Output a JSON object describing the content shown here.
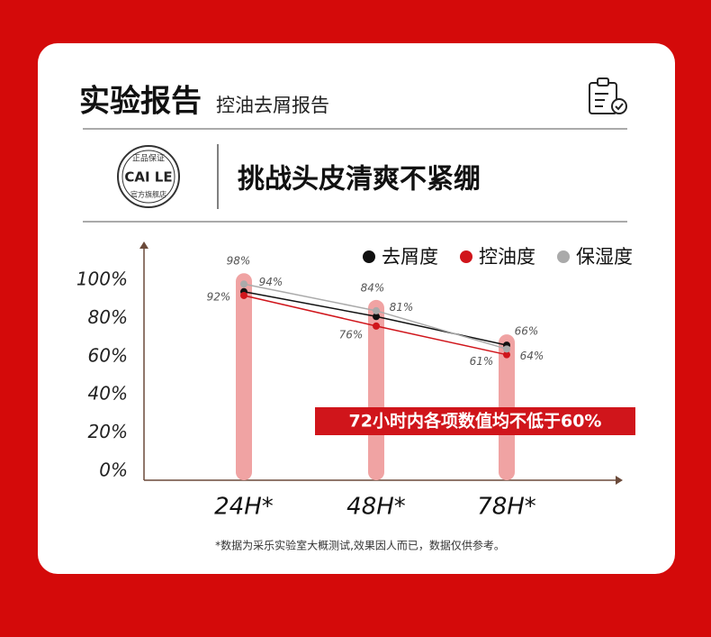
{
  "header": {
    "title": "实验报告",
    "subtitle": "控油去屑报告"
  },
  "badge": {
    "top": "正品保证",
    "brand": "CAI LE",
    "bottom": "官方旗舰店"
  },
  "headline": "挑战头皮清爽不紧绷",
  "chart_data": {
    "type": "line",
    "categories": [
      "24H*",
      "48H*",
      "78H*"
    ],
    "series": [
      {
        "name": "去屑度",
        "color": "#111111",
        "values": [
          94,
          81,
          66
        ],
        "value_labels": [
          "94%",
          "81%",
          "66%"
        ]
      },
      {
        "name": "控油度",
        "color": "#d0151b",
        "values": [
          92,
          76,
          61
        ],
        "value_labels": [
          "92%",
          "76%",
          "61%"
        ]
      },
      {
        "name": "保湿度",
        "color": "#aaaaaa",
        "values": [
          98,
          84,
          64
        ],
        "value_labels": [
          "98%",
          "84%",
          "64%"
        ]
      }
    ],
    "ylim": [
      0,
      120
    ],
    "yticks": [
      {
        "value": 0,
        "label": "0%"
      },
      {
        "value": 20,
        "label": "20%"
      },
      {
        "value": 40,
        "label": "40%"
      },
      {
        "value": 60,
        "label": "60%"
      },
      {
        "value": 80,
        "label": "80%"
      },
      {
        "value": 100,
        "label": "100%"
      }
    ],
    "annotation": "72小时内各项数值均不低于60%"
  },
  "footnote": "*数据为采乐实验室大概测试,效果因人而已，数据仅供参考。"
}
